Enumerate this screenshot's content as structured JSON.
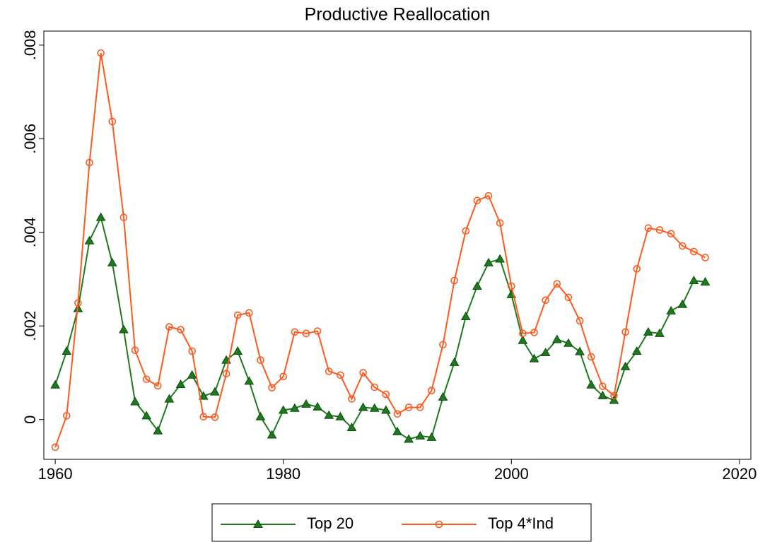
{
  "chart_data": {
    "type": "line",
    "title": "Productive Reallocation",
    "x": [
      1960,
      1961,
      1962,
      1963,
      1964,
      1965,
      1966,
      1967,
      1968,
      1969,
      1970,
      1971,
      1972,
      1973,
      1974,
      1975,
      1976,
      1977,
      1978,
      1979,
      1980,
      1981,
      1982,
      1983,
      1984,
      1985,
      1986,
      1987,
      1988,
      1989,
      1990,
      1991,
      1992,
      1993,
      1994,
      1995,
      1996,
      1997,
      1998,
      1999,
      2000,
      2001,
      2002,
      2003,
      2004,
      2005,
      2006,
      2007,
      2008,
      2009,
      2010,
      2011,
      2012,
      2013,
      2014,
      2015,
      2016,
      2017
    ],
    "series": [
      {
        "name": "Top 20",
        "color": "#1f7a1f",
        "marker": "triangle",
        "values": [
          0.00074,
          0.00146,
          0.00237,
          0.00382,
          0.00432,
          0.00335,
          0.00192,
          0.00038,
          8e-05,
          -0.00024,
          0.00044,
          0.00075,
          0.00095,
          0.0005,
          0.00059,
          0.00127,
          0.00146,
          0.00082,
          6e-05,
          -0.00033,
          0.0002,
          0.00024,
          0.00033,
          0.00027,
          9e-05,
          6e-05,
          -0.00017,
          0.00026,
          0.00024,
          0.0002,
          -0.00026,
          -0.00042,
          -0.00035,
          -0.00038,
          0.00048,
          0.00122,
          0.0022,
          0.00285,
          0.00335,
          0.00343,
          0.00267,
          0.00169,
          0.0013,
          0.00143,
          0.00171,
          0.00163,
          0.00145,
          0.00074,
          0.00051,
          0.00041,
          0.00113,
          0.00146,
          0.00187,
          0.00184,
          0.00232,
          0.00246,
          0.00297,
          0.00294
        ]
      },
      {
        "name": "Top 4*Ind",
        "color": "#ff5a1f",
        "marker": "circle",
        "values": [
          -0.00059,
          8e-05,
          0.00249,
          0.00549,
          0.00783,
          0.00637,
          0.00432,
          0.00148,
          0.00086,
          0.00072,
          0.00198,
          0.00192,
          0.00146,
          6e-05,
          5e-05,
          0.00098,
          0.00223,
          0.00228,
          0.00127,
          0.00068,
          0.00092,
          0.00187,
          0.00184,
          0.00189,
          0.00103,
          0.00095,
          0.00044,
          0.001,
          0.00069,
          0.00054,
          0.00012,
          0.00026,
          0.00026,
          0.00062,
          0.0016,
          0.00297,
          0.00403,
          0.00468,
          0.00478,
          0.0042,
          0.00285,
          0.00184,
          0.00186,
          0.00255,
          0.0029,
          0.00261,
          0.00211,
          0.00134,
          0.00071,
          0.00051,
          0.00187,
          0.00322,
          0.00409,
          0.00405,
          0.00397,
          0.00371,
          0.00359,
          0.00346
        ]
      }
    ],
    "xlim": [
      1959,
      2021
    ],
    "xticks": [
      1960,
      1980,
      2000,
      2020
    ],
    "ylim": [
      -0.00085,
      0.0083
    ],
    "yticks": [
      0,
      {
        "value": 0.002,
        "label": ".002"
      },
      {
        "value": 0.004,
        "label": ".004"
      },
      {
        "value": 0.006,
        "label": ".006"
      },
      {
        "value": 0.008,
        "label": ".008"
      }
    ],
    "grid": false,
    "legend": "bottom"
  }
}
